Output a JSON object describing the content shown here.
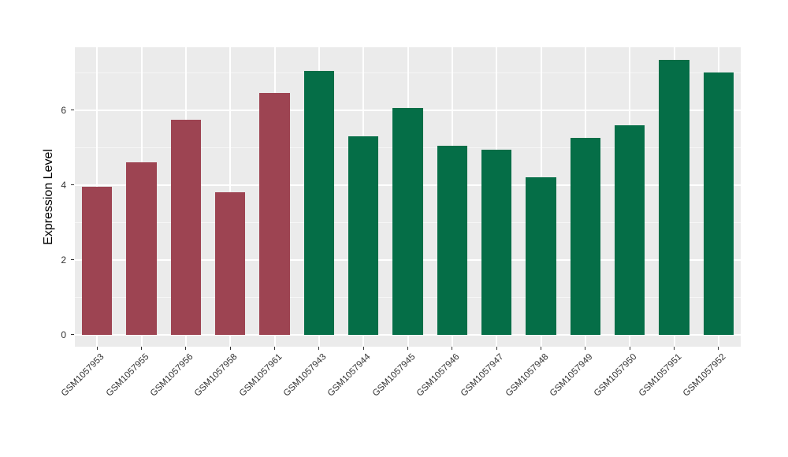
{
  "chart_data": {
    "type": "bar",
    "title": "",
    "xlabel": "",
    "ylabel": "Expression Level",
    "ylim": [
      -0.32,
      7.68
    ],
    "yticks": [
      0,
      2,
      4,
      6
    ],
    "minor_gridlines": [
      1,
      3,
      5,
      7
    ],
    "grid": "on",
    "legend": "none",
    "panel_background": "#ebebeb",
    "categories": [
      "GSM1057953",
      "GSM1057955",
      "GSM1057956",
      "GSM1057958",
      "GSM1057961",
      "GSM1057943",
      "GSM1057944",
      "GSM1057945",
      "GSM1057946",
      "GSM1057947",
      "GSM1057948",
      "GSM1057949",
      "GSM1057950",
      "GSM1057951",
      "GSM1057952"
    ],
    "values": [
      3.95,
      4.6,
      5.75,
      3.8,
      6.45,
      7.05,
      5.3,
      6.05,
      5.05,
      4.95,
      4.2,
      5.25,
      5.6,
      7.35,
      7.0
    ],
    "bar_groups": [
      "group1",
      "group1",
      "group1",
      "group1",
      "group1",
      "group2",
      "group2",
      "group2",
      "group2",
      "group2",
      "group2",
      "group2",
      "group2",
      "group2",
      "group2"
    ],
    "group_colors": {
      "group1": "#9d4452",
      "group2": "#056e47"
    }
  }
}
